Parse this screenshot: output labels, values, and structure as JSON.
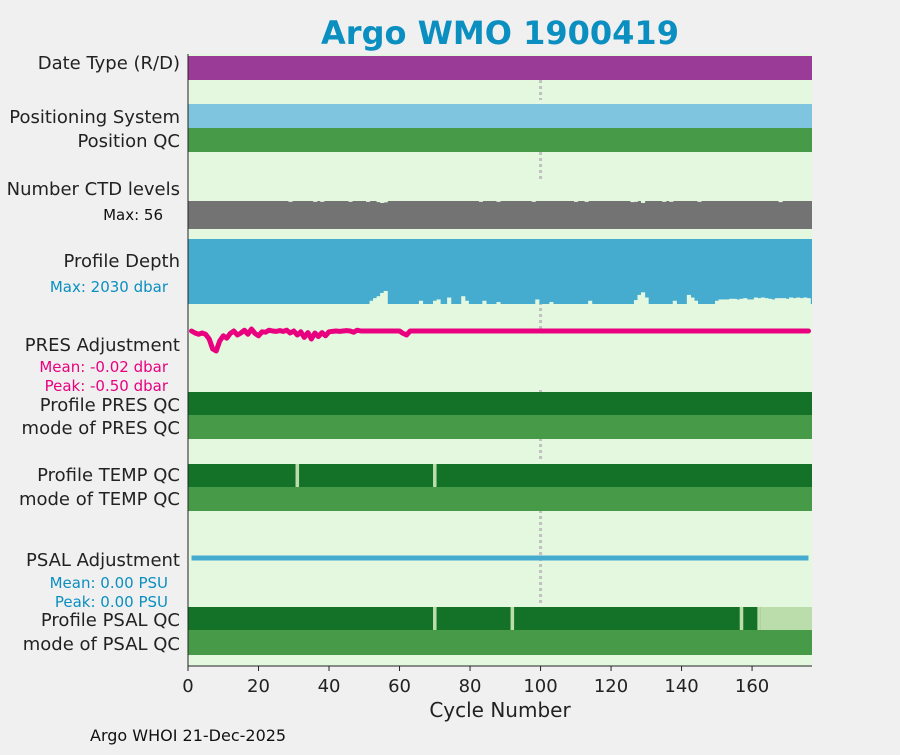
{
  "chart_data": {
    "type": "bar",
    "title": "Argo WMO 1900419",
    "xlabel": "Cycle Number",
    "xlim": [
      0,
      177
    ],
    "xticks": [
      0,
      20,
      40,
      60,
      80,
      100,
      120,
      140,
      160
    ],
    "vline_cycle": 100,
    "footer": "Argo WHOI 21-Dec-2025",
    "colors": {
      "background": "#e4f8e0",
      "figure": "#f0f0f0",
      "title": "#0a8fc0",
      "data_type": "#9a3b97",
      "positioning": "#7fc5df",
      "qc_mode": "#479a47",
      "qc_good": "#147228",
      "qc_missing": "#bbdcab",
      "ctd": "#737373",
      "depth": "#45abcf",
      "pres": "#e8007f",
      "psal": "#45abcf",
      "vline": "#c0c0c0"
    },
    "rows": {
      "data_type": {
        "label": "Date Type (R/D)"
      },
      "positioning": {
        "label": "Positioning System"
      },
      "position_qc": {
        "label": "Position QC"
      },
      "ctd": {
        "label": "Number CTD levels",
        "max_label": "Max: 56",
        "max": 56,
        "dips": [
          [
            29,
            0.97
          ],
          [
            36,
            0.97
          ],
          [
            38,
            0.97
          ],
          [
            46,
            0.97
          ],
          [
            51,
            0.97
          ],
          [
            54,
            0.96
          ],
          [
            55,
            0.93
          ],
          [
            56,
            0.95
          ],
          [
            83,
            0.97
          ],
          [
            88,
            0.97
          ],
          [
            98,
            0.97
          ],
          [
            110,
            0.97
          ],
          [
            113,
            0.97
          ],
          [
            126,
            0.96
          ],
          [
            127,
            0.97
          ],
          [
            129,
            0.93
          ],
          [
            135,
            0.97
          ],
          [
            137,
            0.97
          ],
          [
            145,
            0.97
          ],
          [
            168,
            0.96
          ]
        ]
      },
      "depth": {
        "label": "Profile Depth",
        "max_label": "Max: 2030 dbar",
        "max": 2030,
        "dips": [
          [
            52,
            0.95
          ],
          [
            53,
            0.91
          ],
          [
            54,
            0.88
          ],
          [
            55,
            0.83
          ],
          [
            56,
            0.8
          ],
          [
            66,
            0.95
          ],
          [
            70,
            0.95
          ],
          [
            71,
            0.93
          ],
          [
            74,
            0.9
          ],
          [
            78,
            0.88
          ],
          [
            79,
            0.95
          ],
          [
            84,
            0.95
          ],
          [
            88,
            0.97
          ],
          [
            99,
            0.93
          ],
          [
            103,
            0.97
          ],
          [
            114,
            0.95
          ],
          [
            127,
            0.94
          ],
          [
            128,
            0.86
          ],
          [
            129,
            0.82
          ],
          [
            130,
            0.9
          ],
          [
            138,
            0.95
          ],
          [
            142,
            0.86
          ],
          [
            143,
            0.9
          ],
          [
            144,
            0.95
          ],
          [
            150,
            0.95
          ],
          [
            151,
            0.93
          ],
          [
            152,
            0.93
          ],
          [
            153,
            0.93
          ],
          [
            154,
            0.92
          ],
          [
            155,
            0.92
          ],
          [
            156,
            0.93
          ],
          [
            157,
            0.92
          ],
          [
            158,
            0.91
          ],
          [
            159,
            0.93
          ],
          [
            160,
            0.93
          ],
          [
            161,
            0.9
          ],
          [
            162,
            0.91
          ],
          [
            163,
            0.9
          ],
          [
            164,
            0.91
          ],
          [
            165,
            0.92
          ],
          [
            166,
            0.93
          ],
          [
            167,
            0.91
          ],
          [
            168,
            0.91
          ],
          [
            169,
            0.91
          ],
          [
            170,
            0.92
          ],
          [
            171,
            0.9
          ],
          [
            172,
            0.91
          ],
          [
            173,
            0.9
          ],
          [
            174,
            0.91
          ],
          [
            175,
            0.9
          ],
          [
            176,
            0.91
          ]
        ]
      },
      "pres_adj": {
        "label": "PRES Adjustment",
        "mean_label": "Mean: -0.02 dbar",
        "peak_label": "Peak: -0.50 dbar",
        "ylim": [
          -0.6,
          0.4
        ],
        "series": [
          [
            1,
            0
          ],
          [
            2,
            -0.05
          ],
          [
            3,
            -0.08
          ],
          [
            4,
            -0.05
          ],
          [
            5,
            -0.08
          ],
          [
            6,
            -0.2
          ],
          [
            7,
            -0.45
          ],
          [
            8,
            -0.5
          ],
          [
            9,
            -0.25
          ],
          [
            10,
            -0.12
          ],
          [
            11,
            -0.18
          ],
          [
            12,
            -0.06
          ],
          [
            13,
            0
          ],
          [
            14,
            -0.1
          ],
          [
            15,
            -0.05
          ],
          [
            16,
            0.02
          ],
          [
            17,
            -0.08
          ],
          [
            18,
            0.05
          ],
          [
            19,
            -0.06
          ],
          [
            20,
            -0.12
          ],
          [
            21,
            -0.02
          ],
          [
            22,
            -0.03
          ],
          [
            23,
            0.02
          ],
          [
            24,
            0
          ],
          [
            25,
            -0.01
          ],
          [
            26,
            0.01
          ],
          [
            27,
            -0.01
          ],
          [
            28,
            0.02
          ],
          [
            29,
            -0.05
          ],
          [
            30,
            0
          ],
          [
            31,
            -0.1
          ],
          [
            32,
            -0.02
          ],
          [
            33,
            -0.16
          ],
          [
            34,
            -0.04
          ],
          [
            35,
            -0.2
          ],
          [
            36,
            -0.05
          ],
          [
            37,
            -0.14
          ],
          [
            38,
            -0.04
          ],
          [
            39,
            -0.12
          ],
          [
            40,
            -0.02
          ],
          [
            41,
            -0.01
          ],
          [
            42,
            0
          ],
          [
            43,
            -0.01
          ],
          [
            44,
            0
          ],
          [
            45,
            0.01
          ],
          [
            46,
            0
          ],
          [
            47,
            -0.03
          ],
          [
            48,
            0.02
          ],
          [
            49,
            0
          ],
          [
            50,
            0
          ],
          [
            60,
            0
          ],
          [
            61,
            -0.06
          ],
          [
            62,
            -0.1
          ],
          [
            63,
            0
          ],
          [
            176,
            0
          ]
        ]
      },
      "pres_qc": {
        "label": "Profile PRES QC",
        "missing": []
      },
      "pres_mode": {
        "label": "mode of PRES QC"
      },
      "temp_qc": {
        "label": "Profile TEMP QC",
        "missing": [
          31,
          70
        ]
      },
      "temp_mode": {
        "label": "mode of TEMP QC"
      },
      "psal_adj": {
        "label": "PSAL Adjustment",
        "mean_label": "Mean: 0.00 PSU",
        "peak_label": "Peak: 0.00 PSU"
      },
      "psal_qc": {
        "label": "Profile PSAL QC",
        "missing": [
          70,
          92,
          157,
          162
        ],
        "missing_from": 163
      },
      "psal_mode": {
        "label": "mode of PSAL QC"
      }
    }
  }
}
